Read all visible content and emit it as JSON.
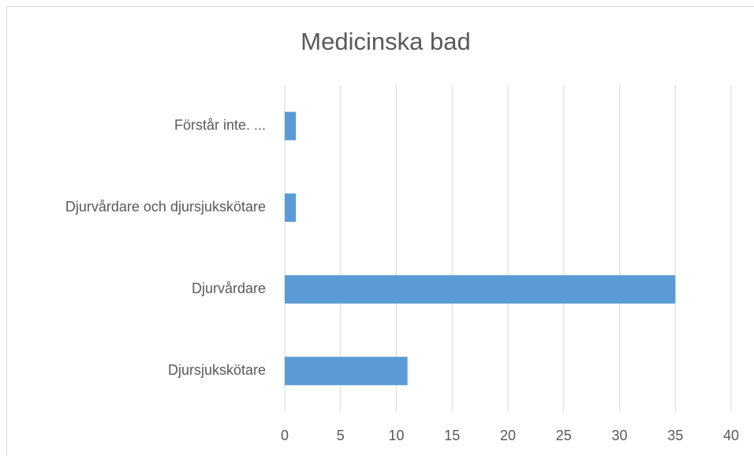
{
  "chart_data": {
    "type": "bar",
    "orientation": "horizontal",
    "title": "Medicinska bad",
    "categories": [
      "Förstår inte. ...",
      "Djurvårdare och djursjukskötare",
      "Djurvårdare",
      "Djursjukskötare"
    ],
    "values": [
      1,
      1,
      35,
      11
    ],
    "color": "#5b9bd5",
    "xlim": [
      0,
      40
    ],
    "xticks": [
      0,
      5,
      10,
      15,
      20,
      25,
      30,
      35,
      40
    ],
    "grid": true
  }
}
